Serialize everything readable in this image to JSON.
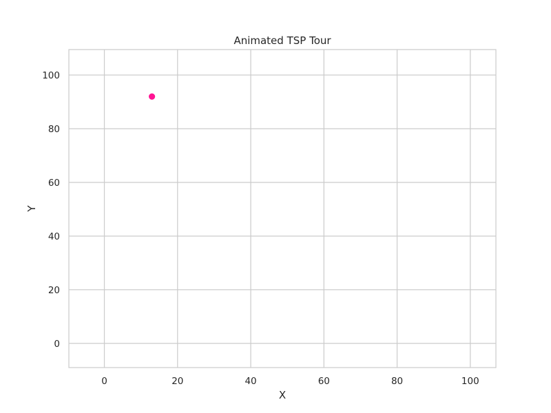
{
  "chart_data": {
    "type": "scatter",
    "title": "Animated TSP Tour",
    "xlabel": "X",
    "ylabel": "Y",
    "xlim": [
      -9.7,
      107
    ],
    "ylim": [
      -9,
      109.5
    ],
    "xticks": [
      0,
      20,
      40,
      60,
      80,
      100
    ],
    "yticks": [
      0,
      20,
      40,
      60,
      80,
      100
    ],
    "grid": true,
    "points": [
      {
        "x": 13,
        "y": 92
      }
    ],
    "point_color": "#ff1493",
    "grid_color": "#cccccc",
    "frame_color": "#cccccc",
    "text_color": "#262626"
  }
}
